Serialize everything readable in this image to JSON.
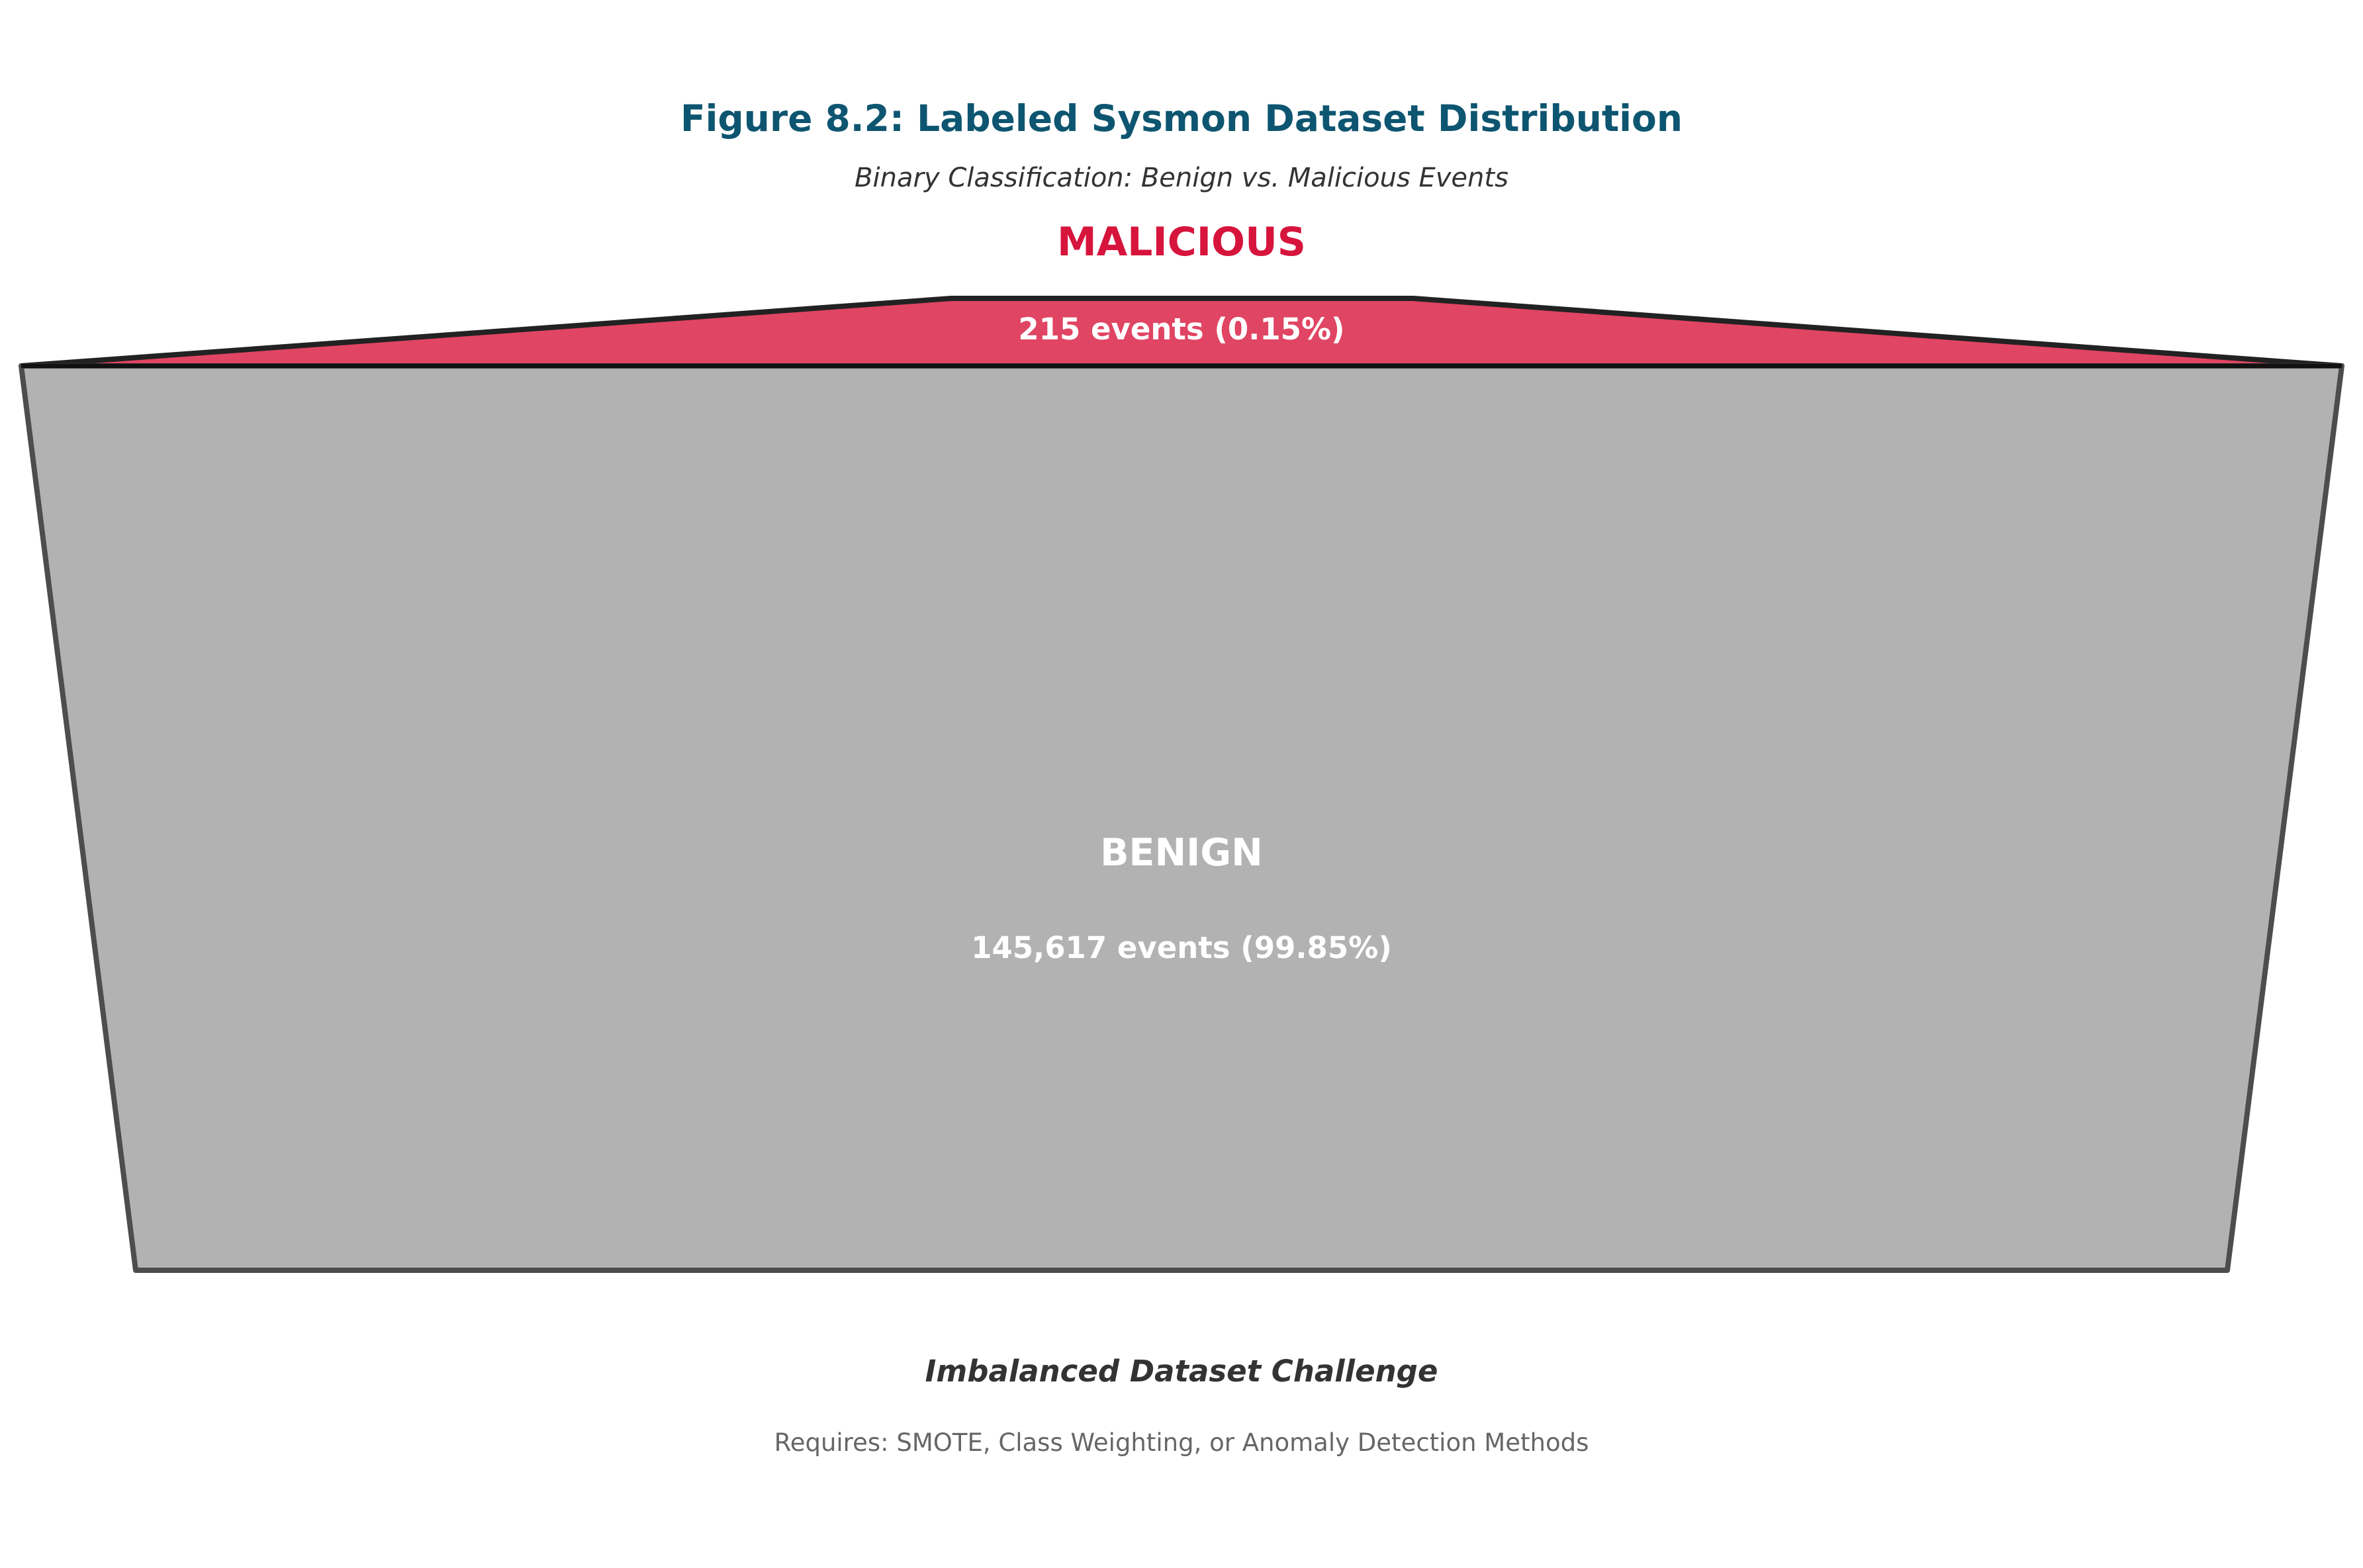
{
  "chart_data": {
    "type": "funnel",
    "title": "Figure 8.2: Labeled Sysmon Dataset Distribution",
    "subtitle": "Binary Classification: Benign vs. Malicious Events",
    "categories": [
      "MALICIOUS",
      "BENIGN"
    ],
    "values": [
      215,
      145617
    ],
    "percentages": [
      0.15,
      99.85
    ],
    "segments": [
      {
        "name": "MALICIOUS",
        "value": 215,
        "percent": 0.15,
        "value_label": "215 events (0.15%)",
        "color": "#e04563"
      },
      {
        "name": "BENIGN",
        "value": 145617,
        "percent": 99.85,
        "value_label": "145,617 events (99.85%)",
        "color": "#b2b2b2"
      }
    ],
    "annotation": "Imbalanced Dataset Challenge",
    "annotation_detail": "Requires: SMOTE, Class Weighting, or Anomaly Detection Methods",
    "grid": false,
    "legend": "none"
  },
  "colors": {
    "title": "#0d5570",
    "malicious_label": "#d6143c",
    "malicious_fill": "#e04563",
    "benign_fill": "#b2b2b2",
    "outline": "#222222"
  }
}
